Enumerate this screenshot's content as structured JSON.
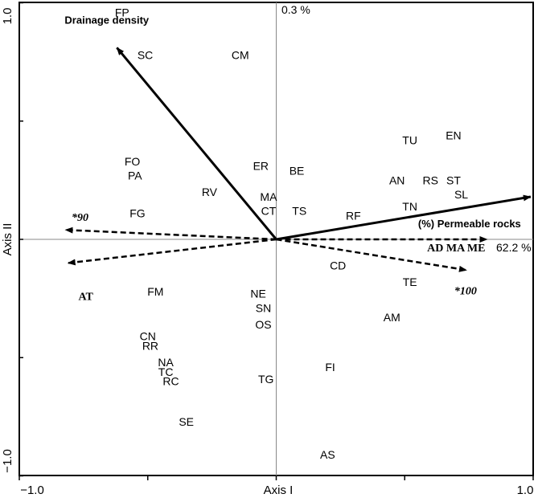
{
  "chart_data": {
    "type": "scatter",
    "subtype": "ordination biplot",
    "xlabel": "Axis I",
    "ylabel": "Axis II",
    "xlim": [
      -1.0,
      1.0
    ],
    "ylim": [
      -1.0,
      1.0
    ],
    "x_tick_labels": [
      "−1.0",
      "1.0"
    ],
    "y_tick_labels": [
      "1.0",
      "−1.0"
    ],
    "axis_annotations": {
      "axis2_percent": "0.3 %",
      "axis1_percent": "62.2 %"
    },
    "points": [
      {
        "label": "FP",
        "x": -0.6,
        "y": 0.96
      },
      {
        "label": "SC",
        "x": -0.51,
        "y": 0.78
      },
      {
        "label": "CM",
        "x": -0.14,
        "y": 0.78
      },
      {
        "label": "FO",
        "x": -0.56,
        "y": 0.33
      },
      {
        "label": "PA",
        "x": -0.55,
        "y": 0.27
      },
      {
        "label": "FG",
        "x": -0.54,
        "y": 0.11
      },
      {
        "label": "RV",
        "x": -0.26,
        "y": 0.2
      },
      {
        "label": "ER",
        "x": -0.06,
        "y": 0.31
      },
      {
        "label": "BE",
        "x": 0.08,
        "y": 0.29
      },
      {
        "label": "MA",
        "x": -0.03,
        "y": 0.18
      },
      {
        "label": "CT",
        "x": -0.03,
        "y": 0.12
      },
      {
        "label": "TS",
        "x": 0.09,
        "y": 0.12
      },
      {
        "label": "RF",
        "x": 0.3,
        "y": 0.1
      },
      {
        "label": "TU",
        "x": 0.52,
        "y": 0.42
      },
      {
        "label": "EN",
        "x": 0.69,
        "y": 0.44
      },
      {
        "label": "AN",
        "x": 0.47,
        "y": 0.25
      },
      {
        "label": "RS",
        "x": 0.6,
        "y": 0.25
      },
      {
        "label": "ST",
        "x": 0.69,
        "y": 0.25
      },
      {
        "label": "SL",
        "x": 0.72,
        "y": 0.19
      },
      {
        "label": "TN",
        "x": 0.52,
        "y": 0.14
      },
      {
        "label": "CD",
        "x": 0.24,
        "y": -0.11
      },
      {
        "label": "TE",
        "x": 0.52,
        "y": -0.18
      },
      {
        "label": "AM",
        "x": 0.45,
        "y": -0.33
      },
      {
        "label": "FI",
        "x": 0.21,
        "y": -0.54
      },
      {
        "label": "AS",
        "x": 0.2,
        "y": -0.91
      },
      {
        "label": "FM",
        "x": -0.47,
        "y": -0.22
      },
      {
        "label": "NE",
        "x": -0.07,
        "y": -0.23
      },
      {
        "label": "SN",
        "x": -0.05,
        "y": -0.29
      },
      {
        "label": "OS",
        "x": -0.05,
        "y": -0.36
      },
      {
        "label": "CN",
        "x": -0.5,
        "y": -0.41
      },
      {
        "label": "RR",
        "x": -0.49,
        "y": -0.45
      },
      {
        "label": "NA",
        "x": -0.43,
        "y": -0.52
      },
      {
        "label": "TC",
        "x": -0.43,
        "y": -0.56
      },
      {
        "label": "RC",
        "x": -0.41,
        "y": -0.6
      },
      {
        "label": "TG",
        "x": -0.04,
        "y": -0.59
      },
      {
        "label": "SE",
        "x": -0.35,
        "y": -0.77
      }
    ],
    "vectors": [
      {
        "label": "Drainage density",
        "x": -0.62,
        "y": 0.81,
        "style": "solid",
        "font": "sans-bold"
      },
      {
        "label": "(%) Permeable rocks",
        "x": 0.99,
        "y": 0.18,
        "style": "solid",
        "font": "sans-bold"
      },
      {
        "label": "*90",
        "x": -0.82,
        "y": 0.04,
        "style": "dashed",
        "font": "serif-bold-italic"
      },
      {
        "label": "AT",
        "x": -0.81,
        "y": -0.1,
        "style": "dashed",
        "font": "serif-bold"
      },
      {
        "label": "AD MA ME",
        "x": 0.82,
        "y": 0.0,
        "style": "dashed",
        "font": "serif-bold"
      },
      {
        "label": "*100",
        "x": 0.74,
        "y": -0.13,
        "style": "dashed",
        "font": "serif-bold-italic"
      }
    ]
  }
}
